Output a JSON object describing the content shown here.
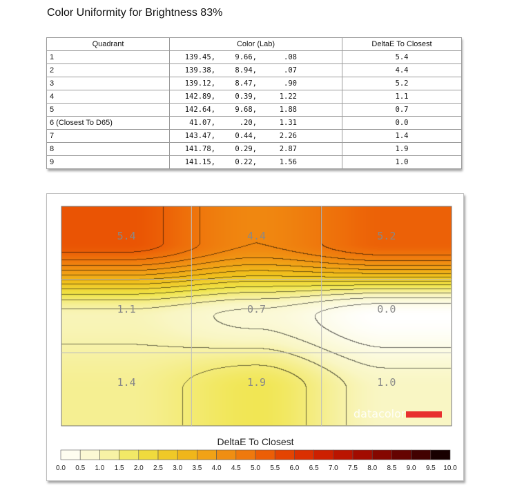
{
  "title": "Color Uniformity for Brightness 83%",
  "table": {
    "headers": [
      "Quadrant",
      "Color (Lab)",
      "DeltaE To Closest"
    ],
    "rows": [
      {
        "quadrant": "1",
        "L": "139.45,",
        "a": "9.66,",
        "b": ".08",
        "de": "5.4"
      },
      {
        "quadrant": "2",
        "L": "139.38,",
        "a": "8.94,",
        "b": ".07",
        "de": "4.4"
      },
      {
        "quadrant": "3",
        "L": "139.12,",
        "a": "8.47,",
        "b": ".90",
        "de": "5.2"
      },
      {
        "quadrant": "4",
        "L": "142.89,",
        "a": "0.39,",
        "b": "1.22",
        "de": "1.1"
      },
      {
        "quadrant": "5",
        "L": "142.64,",
        "a": "9.68,",
        "b": "1.88",
        "de": "0.7"
      },
      {
        "quadrant": "6 (Closest To D65)",
        "L": "41.07,",
        "a": ".20,",
        "b": "1.31",
        "de": "0.0"
      },
      {
        "quadrant": "7",
        "L": "143.47,",
        "a": "0.44,",
        "b": "2.26",
        "de": "1.4"
      },
      {
        "quadrant": "8",
        "L": "141.78,",
        "a": "0.29,",
        "b": "2.87",
        "de": "1.9"
      },
      {
        "quadrant": "9",
        "L": "141.15,",
        "a": "0.22,",
        "b": "1.56",
        "de": "1.0"
      }
    ]
  },
  "chart_data": {
    "type": "heatmap",
    "grid_rows": 3,
    "grid_cols": 3,
    "values": [
      [
        5.4,
        4.4,
        5.2
      ],
      [
        1.1,
        0.7,
        0.0
      ],
      [
        1.4,
        1.9,
        1.0
      ]
    ],
    "labels": [
      [
        "5.4",
        "4.4",
        "5.2"
      ],
      [
        "1.1",
        "0.7",
        "0.0"
      ],
      [
        "1.4",
        "1.9",
        "1.0"
      ]
    ],
    "scale_title": "DeltaE To Closest",
    "scale_min": 0.0,
    "scale_max": 10.0,
    "scale_ticks": [
      "0.0",
      "0.5",
      "1.0",
      "1.5",
      "2.0",
      "2.5",
      "3.0",
      "3.5",
      "4.0",
      "4.5",
      "5.0",
      "5.5",
      "6.0",
      "6.5",
      "7.0",
      "7.5",
      "8.0",
      "8.5",
      "9.0",
      "9.5",
      "10.0"
    ],
    "contour_step": 0.4,
    "brand": "datacolor",
    "brand_color": "#e8302f"
  }
}
